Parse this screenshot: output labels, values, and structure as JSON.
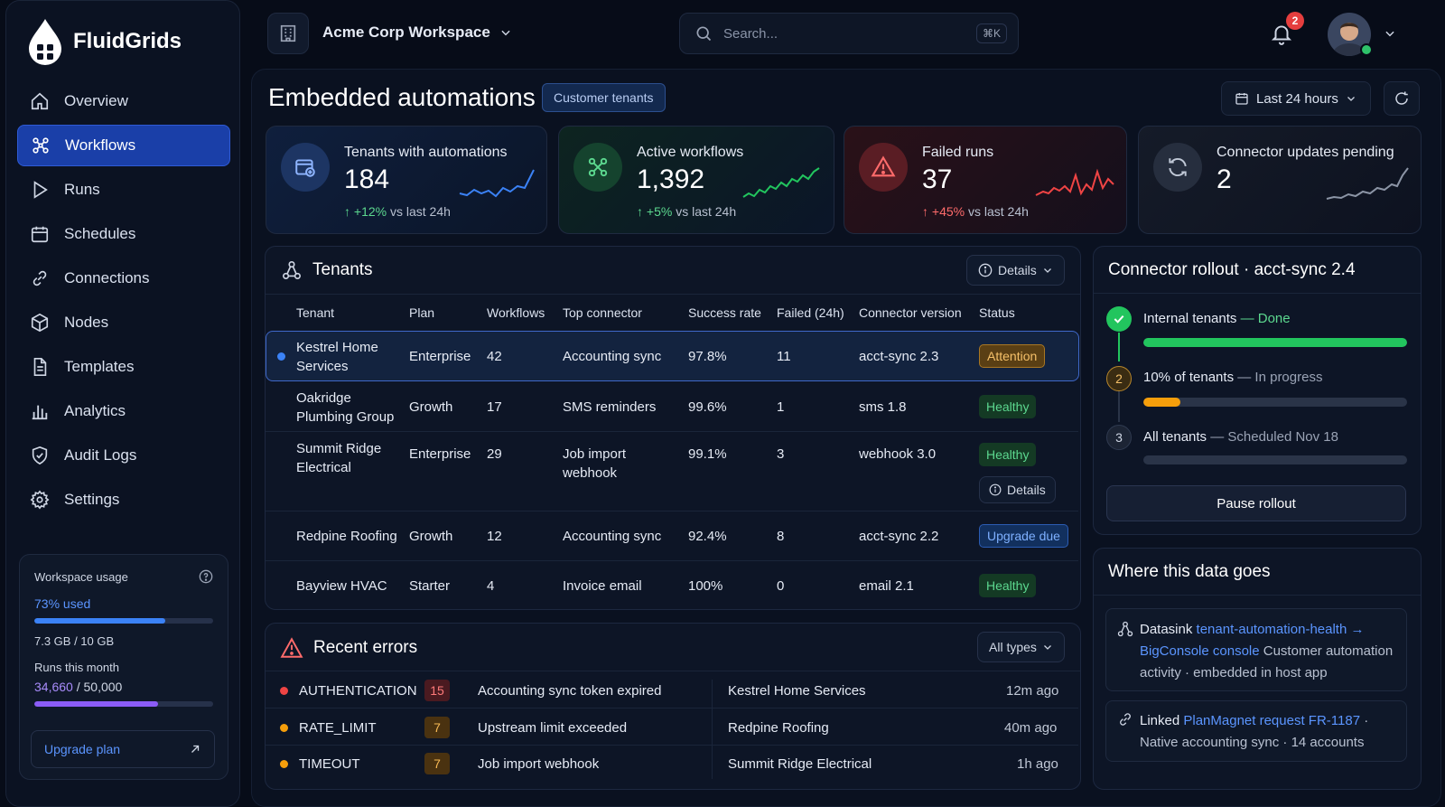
{
  "sidebar": {
    "brand": "FluidGrids",
    "items": [
      {
        "label": "Overview",
        "icon": "home-icon",
        "active": false
      },
      {
        "label": "Workflows",
        "icon": "workflow-icon",
        "active": true
      },
      {
        "label": "Runs",
        "icon": "play-icon",
        "active": false
      },
      {
        "label": "Schedules",
        "icon": "calendar-icon",
        "active": false
      },
      {
        "label": "Connections",
        "icon": "link-icon",
        "active": false
      },
      {
        "label": "Nodes",
        "icon": "cube-icon",
        "active": false
      },
      {
        "label": "Templates",
        "icon": "document-icon",
        "active": false
      },
      {
        "label": "Analytics",
        "icon": "bar-chart-icon",
        "active": false
      },
      {
        "label": "Audit Logs",
        "icon": "shield-check-icon",
        "active": false
      },
      {
        "label": "Settings",
        "icon": "gear-icon",
        "active": false
      }
    ],
    "usage": {
      "title": "Workspace usage",
      "percent_label": "73% used",
      "storage_fraction": 0.73,
      "storage": "7.3 GB / 10 GB",
      "runs_title": "Runs this month",
      "runs_used": "34,660",
      "runs_total": "/ 50,000",
      "runs_fraction": 0.69,
      "upgrade_label": "Upgrade plan"
    }
  },
  "topbar": {
    "workspace": "Acme Corp Workspace",
    "search_placeholder": "Search...",
    "search_shortcut": "⌘K",
    "notifications": "2"
  },
  "header": {
    "title": "Embedded automations",
    "pill": "Customer tenants",
    "range": "Last 24 hours"
  },
  "kpis": [
    {
      "title": "Tenants with automations",
      "value": "184",
      "delta": "+12%",
      "delta_suffix": " vs last 24h",
      "icon": "database-plus-icon",
      "color": "#3b82f6"
    },
    {
      "title": "Active workflows",
      "value": "1,392",
      "delta": "+5%",
      "delta_suffix": " vs last 24h",
      "icon": "workflow-icon",
      "color": "#22c55e"
    },
    {
      "title": "Failed runs",
      "value": "37",
      "delta": "+45%",
      "delta_suffix": " vs last 24h",
      "icon": "warning-icon",
      "color": "#ef4444"
    },
    {
      "title": "Connector updates pending",
      "value": "2",
      "delta": "",
      "delta_suffix": "",
      "icon": "refresh-icon",
      "color": "#9aa3b5"
    }
  ],
  "tenants": {
    "title": "Tenants",
    "details_label": "Details",
    "columns": [
      "Tenant",
      "Plan",
      "Workflows",
      "Top connector",
      "Success rate",
      "Failed (24h)",
      "Connector version",
      "Status"
    ],
    "rows": [
      {
        "tenant_line1": "Kestrel Home",
        "tenant_line2": "Services",
        "plan": "Enterprise",
        "workflows": "42",
        "connector_line1": "Accounting sync",
        "connector_line2": "",
        "success": "97.8%",
        "failed": "11",
        "version": "acct-sync 2.3",
        "status": "Attention"
      },
      {
        "tenant_line1": "Oakridge",
        "tenant_line2": "Plumbing Group",
        "plan": "Growth",
        "workflows": "17",
        "connector_line1": "SMS reminders",
        "connector_line2": "",
        "success": "99.6%",
        "failed": "1",
        "version": "sms 1.8",
        "status": "Healthy"
      },
      {
        "tenant_line1": "Summit Ridge",
        "tenant_line2": "Electrical",
        "plan": "Enterprise",
        "workflows": "29",
        "connector_line1": "Job import",
        "connector_line2": "webhook",
        "success": "99.1%",
        "failed": "3",
        "version": "webhook 3.0",
        "status": "Healthy",
        "row_details": "Details"
      },
      {
        "tenant_line1": "Redpine Roofing",
        "tenant_line2": "",
        "plan": "Growth",
        "workflows": "12",
        "connector_line1": "Accounting sync",
        "connector_line2": "",
        "success": "92.4%",
        "failed": "8",
        "version": "acct-sync 2.2",
        "status": "Upgrade due"
      },
      {
        "tenant_line1": "Bayview HVAC",
        "tenant_line2": "",
        "plan": "Starter",
        "workflows": "4",
        "connector_line1": "Invoice email",
        "connector_line2": "",
        "success": "100%",
        "failed": "0",
        "version": "email 2.1",
        "status": "Healthy"
      }
    ]
  },
  "errors": {
    "title": "Recent errors",
    "filter": "All types",
    "rows": [
      {
        "type": "AUTHENTICATION",
        "count": "15",
        "message": "Accounting sync token expired",
        "tenant": "Kestrel Home Services",
        "time": "12m ago",
        "color": "#ef4444"
      },
      {
        "type": "RATE_LIMIT",
        "count": "7",
        "message": "Upstream limit exceeded",
        "tenant": "Redpine Roofing",
        "time": "40m ago",
        "color": "#f59e0b"
      },
      {
        "type": "TIMEOUT",
        "count": "7",
        "message": "Job import webhook",
        "tenant": "Summit Ridge Electrical",
        "time": "1h ago",
        "color": "#f59e0b"
      }
    ]
  },
  "rollout": {
    "title": "Connector rollout · acct-sync 2.4",
    "steps": [
      {
        "num": "",
        "label": "Internal tenants",
        "sep": " — ",
        "state": "Done",
        "progress": 1.0
      },
      {
        "num": "2",
        "label": "10% of tenants",
        "sep": " — ",
        "state": "In progress",
        "progress": 0.14
      },
      {
        "num": "3",
        "label": "All tenants",
        "sep": " — ",
        "state": "Scheduled Nov 18",
        "progress": 0.0
      }
    ],
    "pause_label": "Pause rollout"
  },
  "datagoes": {
    "title": "Where this data goes",
    "item1_prefix": "Datasink ",
    "item1_link": "tenant-automation-health",
    "item1_arrow": " → ",
    "item1_link2": "BigConsole console",
    "item1_rest": " Customer automation activity · embedded in host app",
    "item2_prefix": "Linked ",
    "item2_link": "PlanMagnet request FR-1187",
    "item2_rest": " · Native accounting sync · 14 accounts"
  }
}
